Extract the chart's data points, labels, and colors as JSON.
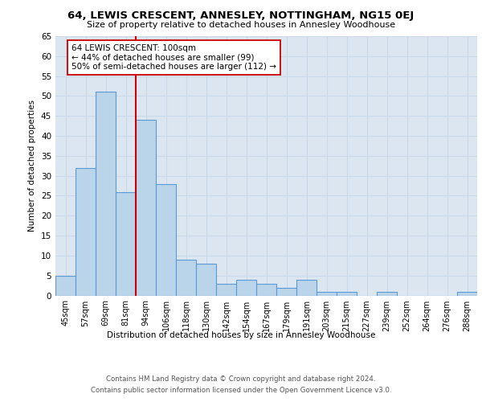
{
  "title": "64, LEWIS CRESCENT, ANNESLEY, NOTTINGHAM, NG15 0EJ",
  "subtitle": "Size of property relative to detached houses in Annesley Woodhouse",
  "xlabel": "Distribution of detached houses by size in Annesley Woodhouse",
  "ylabel": "Number of detached properties",
  "categories": [
    "45sqm",
    "57sqm",
    "69sqm",
    "81sqm",
    "94sqm",
    "106sqm",
    "118sqm",
    "130sqm",
    "142sqm",
    "154sqm",
    "167sqm",
    "179sqm",
    "191sqm",
    "203sqm",
    "215sqm",
    "227sqm",
    "239sqm",
    "252sqm",
    "264sqm",
    "276sqm",
    "288sqm"
  ],
  "values": [
    5,
    32,
    51,
    26,
    44,
    28,
    9,
    8,
    3,
    4,
    3,
    2,
    4,
    1,
    1,
    0,
    1,
    0,
    0,
    0,
    1
  ],
  "bar_color": "#bad4ea",
  "bar_edge_color": "#5b9bd5",
  "grid_color": "#c9d9ea",
  "background_color": "#dce6f1",
  "vline_x": 3.5,
  "vline_color": "#cc0000",
  "annotation_text": "64 LEWIS CRESCENT: 100sqm\n← 44% of detached houses are smaller (99)\n50% of semi-detached houses are larger (112) →",
  "annotation_box_color": "#ffffff",
  "annotation_box_edge": "#cc0000",
  "ylim": [
    0,
    65
  ],
  "yticks": [
    0,
    5,
    10,
    15,
    20,
    25,
    30,
    35,
    40,
    45,
    50,
    55,
    60,
    65
  ],
  "footer_line1": "Contains HM Land Registry data © Crown copyright and database right 2024.",
  "footer_line2": "Contains public sector information licensed under the Open Government Licence v3.0."
}
